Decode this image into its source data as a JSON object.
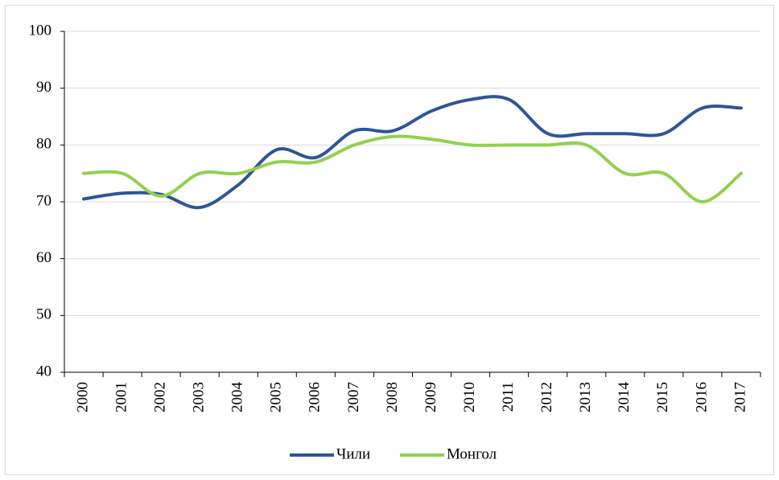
{
  "chart_data": {
    "type": "line",
    "categories": [
      "2000",
      "2001",
      "2002",
      "2003",
      "2004",
      "2005",
      "2006",
      "2007",
      "2008",
      "2009",
      "2010",
      "2011",
      "2012",
      "2013",
      "2014",
      "2015",
      "2016",
      "2017"
    ],
    "series": [
      {
        "name": "Чили",
        "color": "#2e5597",
        "values": [
          70.5,
          71.5,
          71.3,
          69,
          73,
          79.2,
          77.8,
          82.5,
          82.5,
          86,
          88,
          88,
          82,
          82,
          82,
          82,
          86.5,
          86.5
        ]
      },
      {
        "name": "Монгол",
        "color": "#92d050",
        "values": [
          75,
          75,
          71,
          75,
          75,
          77,
          77,
          80,
          81.5,
          81,
          80,
          80,
          80,
          80,
          75,
          75,
          70,
          75
        ]
      }
    ],
    "ylim": [
      40,
      100
    ],
    "yticks": [
      40,
      50,
      60,
      70,
      80,
      90,
      100
    ],
    "grid": true,
    "legend": "bottom"
  }
}
